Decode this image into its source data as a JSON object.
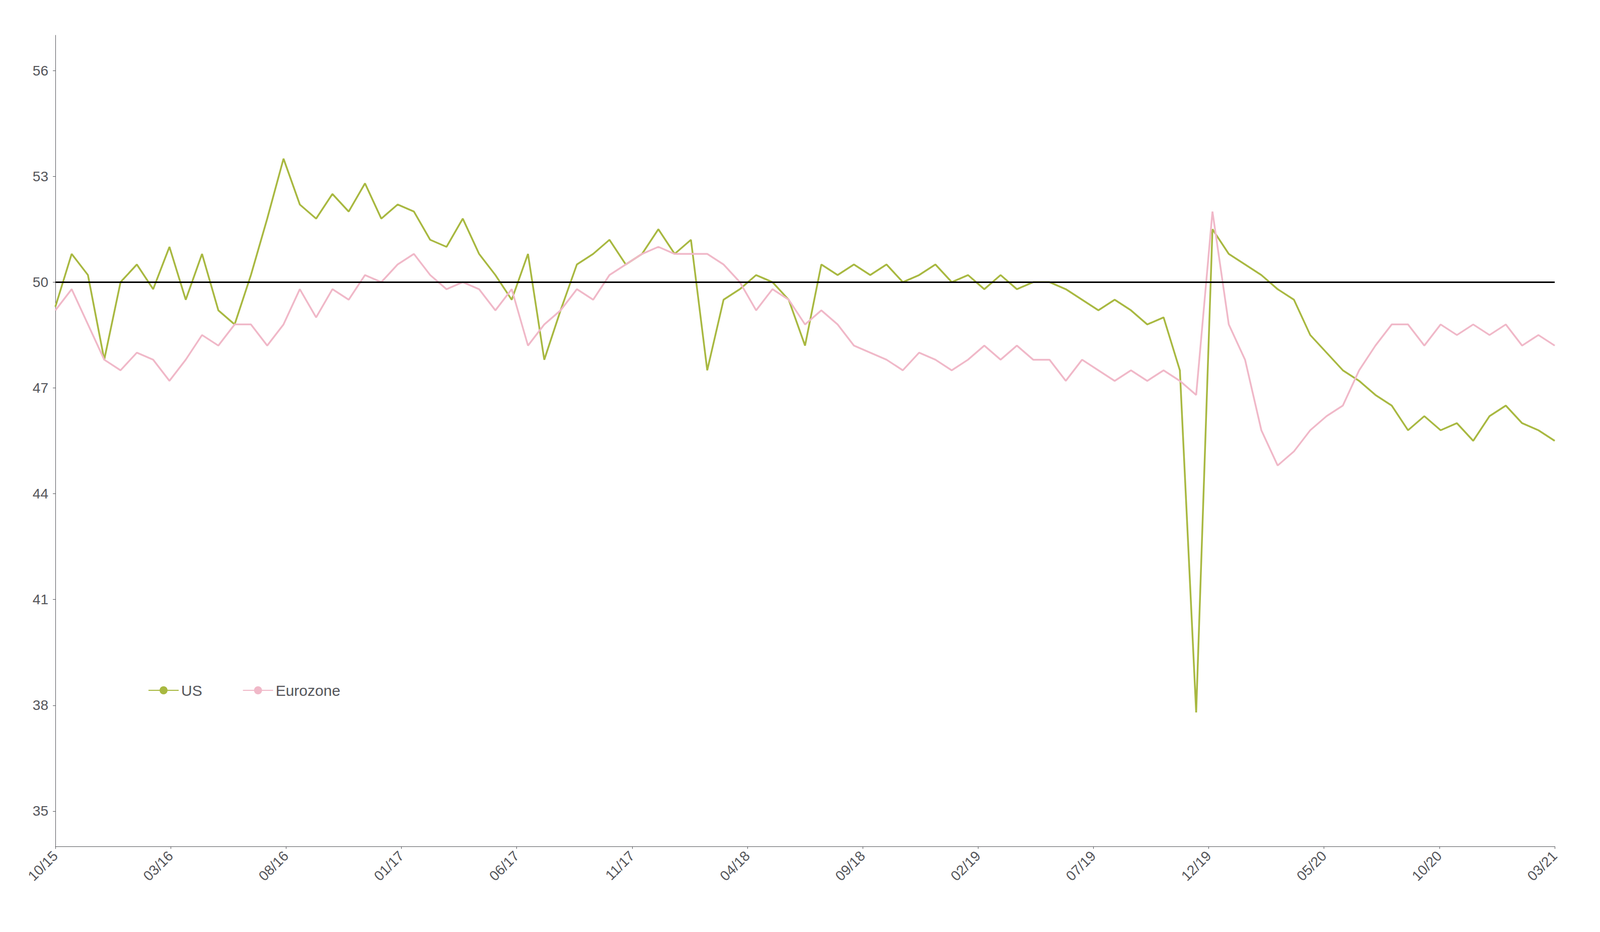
{
  "chart_data": {
    "type": "line",
    "x": [
      0,
      0.706522,
      1.413043,
      2.119565,
      2.826087,
      3.532609,
      4.23913,
      4.945652,
      5.652174,
      6.358696,
      7.065217,
      7.771739,
      8.478261,
      9.184783,
      9.891304,
      10.597826,
      11.304348,
      12.01087,
      12.717391,
      13.423913,
      14.130435,
      14.836957,
      15.543478,
      16.25,
      16.956522,
      17.663043,
      18.369565,
      19.076087,
      19.782609,
      20.48913,
      21.195652,
      21.902174,
      22.608696,
      23.315217,
      24.021739,
      24.728261,
      25.434783,
      26.141304,
      26.847826,
      27.554348,
      28.26087,
      28.967391,
      29.673913,
      30.380435,
      31.086957,
      31.793478,
      32.5,
      33.206522,
      33.913043,
      34.619565,
      35.326087,
      36.032609,
      36.73913,
      37.445652,
      38.152174,
      38.858696,
      39.565217,
      40.271739,
      40.978261,
      41.684783,
      42.391304,
      43.097826,
      43.804348,
      44.51087,
      45.217391,
      45.923913,
      46.630435,
      47.336957,
      48.043478,
      48.75,
      49.456522,
      50.163043,
      50.869565,
      51.576087,
      52.282609,
      52.98913,
      53.695652,
      54.402174,
      55.108696,
      55.815217,
      56.521739,
      57.228261,
      57.934783,
      58.641304,
      59.347826,
      60.054348,
      60.76087,
      61.467391,
      62.173913,
      62.880435,
      63.586957,
      64.293478,
      65
    ],
    "series": [
      {
        "name": "US",
        "color": "#a8b840",
        "line_style": "solid",
        "values": [
          49.3,
          50.8,
          50.2,
          47.8,
          50.0,
          50.5,
          49.8,
          51.0,
          49.5,
          50.8,
          49.2,
          48.8,
          50.2,
          51.8,
          53.5,
          52.2,
          51.8,
          52.5,
          52.0,
          52.8,
          51.8,
          52.2,
          52.0,
          51.2,
          51.0,
          51.8,
          50.8,
          50.2,
          49.5,
          50.8,
          47.8,
          49.2,
          50.5,
          50.8,
          51.2,
          50.5,
          50.8,
          51.5,
          50.8,
          51.2,
          47.5,
          49.5,
          49.8,
          50.2,
          50.0,
          49.5,
          48.2,
          50.5,
          50.2,
          50.5,
          50.2,
          50.5,
          50.0,
          50.2,
          50.5,
          50.0,
          50.2,
          49.8,
          50.2,
          49.8,
          50.0,
          50.0,
          49.8,
          49.5,
          49.2,
          49.5,
          49.2,
          48.8,
          49.0,
          47.5,
          37.8,
          51.5,
          50.8,
          50.5,
          50.2,
          49.8,
          49.5,
          48.5,
          48.0,
          47.5,
          47.2,
          46.8,
          46.5,
          45.8,
          46.2,
          45.8,
          46.0,
          45.5,
          46.2,
          46.5,
          46.0,
          45.8,
          45.5
        ]
      },
      {
        "name": "Eurozone",
        "color": "#f0b8c8",
        "line_style": "solid",
        "values": [
          49.2,
          49.8,
          48.8,
          47.8,
          47.5,
          48.0,
          47.8,
          47.2,
          47.8,
          48.5,
          48.2,
          48.8,
          48.8,
          48.2,
          48.8,
          49.8,
          49.0,
          49.8,
          49.5,
          50.2,
          50.0,
          50.5,
          50.8,
          50.2,
          49.8,
          50.0,
          49.8,
          49.2,
          49.8,
          48.2,
          48.8,
          49.2,
          49.8,
          49.5,
          50.2,
          50.5,
          50.8,
          51.0,
          50.8,
          50.8,
          50.8,
          50.5,
          50.0,
          49.2,
          49.8,
          49.5,
          48.8,
          49.2,
          48.8,
          48.2,
          48.0,
          47.8,
          47.5,
          48.0,
          47.8,
          47.5,
          47.8,
          48.2,
          47.8,
          48.2,
          47.8,
          47.8,
          47.2,
          47.8,
          47.5,
          47.2,
          47.5,
          47.2,
          47.5,
          47.2,
          46.8,
          52.0,
          48.8,
          47.8,
          45.8,
          44.8,
          45.2,
          45.8,
          46.2,
          46.5,
          47.5,
          48.2,
          48.8,
          48.8,
          48.2,
          48.8,
          48.5,
          48.8,
          48.5,
          48.8,
          48.2,
          48.5,
          48.2
        ]
      }
    ],
    "xlim": [
      0,
      65
    ],
    "xticks": [
      {
        "value": 0,
        "label": "10/15"
      },
      {
        "value": 5,
        "label": "03/16"
      },
      {
        "value": 10,
        "label": "08/16"
      },
      {
        "value": 15,
        "label": "01/17"
      },
      {
        "value": 20,
        "label": "06/17"
      },
      {
        "value": 25,
        "label": "11/17"
      },
      {
        "value": 30,
        "label": "04/18"
      },
      {
        "value": 35,
        "label": "09/18"
      },
      {
        "value": 40,
        "label": "02/19"
      },
      {
        "value": 45,
        "label": "07/19"
      },
      {
        "value": 50,
        "label": "12/19"
      },
      {
        "value": 55,
        "label": "05/20"
      },
      {
        "value": 60,
        "label": "10/20"
      },
      {
        "value": 65,
        "label": "03/21"
      }
    ],
    "ylim": [
      34,
      57
    ],
    "yticks": [
      35,
      38,
      41,
      44,
      47,
      50,
      53,
      56
    ],
    "hline": {
      "value": 50,
      "color": "#000000"
    },
    "grid": false,
    "legend": "lower left"
  }
}
